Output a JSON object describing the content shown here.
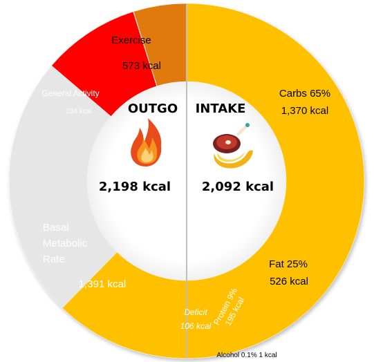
{
  "chart_data": {
    "type": "pie",
    "style": "donut",
    "total": 2198,
    "outgo": {
      "title": "OUTGO",
      "total_label": "2,198 kcal",
      "icon": "fire-icon",
      "segments": [
        {
          "name": "Exercise",
          "value": 573,
          "value_label": "573 kcal",
          "color": "#92d050"
        },
        {
          "name": "General Activity",
          "value": 234,
          "value_label": "234 kcal",
          "color": "#00b050"
        },
        {
          "name": "Basal Metabolic Rate",
          "value": 1391,
          "value_label": "1,391 kcal",
          "color": "#7030a0"
        }
      ]
    },
    "intake": {
      "title": "INTAKE",
      "total_label": "2,092 kcal",
      "icon": "food-icon",
      "segments": [
        {
          "name": "Carbs",
          "percent": "65%",
          "value": 1370,
          "value_label": "1,370 kcal",
          "color": "#ffc000"
        },
        {
          "name": "Fat",
          "percent": "25%",
          "value": 526,
          "value_label": "526 kcal",
          "color": "#e7e6e6"
        },
        {
          "name": "Protein",
          "percent": "9%",
          "value": 195,
          "value_label": "195 kcal",
          "color": "#ff0000"
        },
        {
          "name": "Alcohol",
          "percent": "0.1%",
          "value": 1,
          "value_label": "1 kcal",
          "color": "#c00000"
        }
      ],
      "deficit": {
        "name": "Deficit",
        "value": 106,
        "value_label": "106 kcal",
        "color": "#e07a10"
      }
    },
    "labels": {
      "exercise_name": "Exercise",
      "exercise_value": "573 kcal",
      "general_name": "General Activity",
      "general_value": "234 kcal",
      "bmr_line1": "Basal",
      "bmr_line2": "Metabolic",
      "bmr_line3": "Rate",
      "bmr_value": "1,391 kcal",
      "carbs_pct": "Carbs 65%",
      "carbs_value": "1,370 kcal",
      "fat_pct": "Fat 25%",
      "fat_value": "526 kcal",
      "protein_pct": "Protein 9%",
      "protein_value": "195 kcal",
      "deficit_name": "Deficit",
      "deficit_value": "106 kcal",
      "alcohol": "Alcohol 0.1% 1 kcal"
    }
  }
}
